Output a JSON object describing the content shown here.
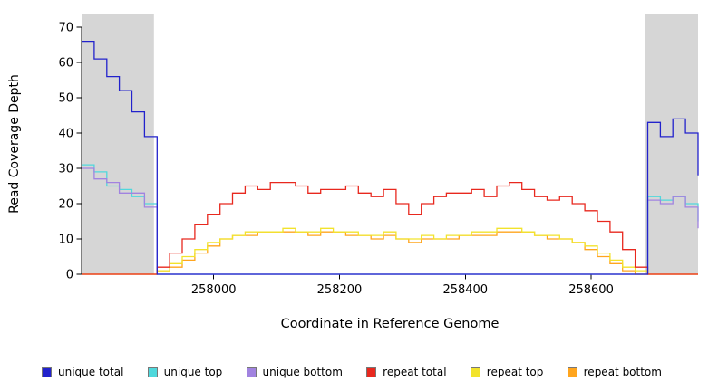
{
  "chart_data": {
    "type": "line",
    "title": "",
    "xlabel": "Coordinate in Reference Genome",
    "ylabel": "Read Coverage Depth",
    "xlim": [
      257790,
      258770
    ],
    "ylim": [
      0,
      70
    ],
    "xticks": [
      258000,
      258200,
      258400,
      258600
    ],
    "yticks": [
      0,
      10,
      20,
      30,
      40,
      50,
      60,
      70
    ],
    "grid": false,
    "legend_position": "bottom",
    "shaded_regions": [
      {
        "x0": 257790,
        "x1": 257905,
        "color": "#d6d6d6"
      },
      {
        "x0": 258685,
        "x1": 258770,
        "color": "#d6d6d6"
      }
    ],
    "x": [
      257790,
      257810,
      257830,
      257850,
      257870,
      257890,
      257910,
      257930,
      257950,
      257970,
      257990,
      258010,
      258030,
      258050,
      258070,
      258090,
      258110,
      258130,
      258150,
      258170,
      258190,
      258210,
      258230,
      258250,
      258270,
      258290,
      258310,
      258330,
      258350,
      258370,
      258390,
      258410,
      258430,
      258450,
      258470,
      258490,
      258510,
      258530,
      258550,
      258570,
      258590,
      258610,
      258630,
      258650,
      258670,
      258690,
      258710,
      258730,
      258750,
      258770
    ],
    "series": [
      {
        "name": "unique total",
        "color": "#2222cc",
        "values": [
          66,
          61,
          56,
          52,
          46,
          39,
          0,
          0,
          0,
          0,
          0,
          0,
          0,
          0,
          0,
          0,
          0,
          0,
          0,
          0,
          0,
          0,
          0,
          0,
          0,
          0,
          0,
          0,
          0,
          0,
          0,
          0,
          0,
          0,
          0,
          0,
          0,
          0,
          0,
          0,
          0,
          0,
          0,
          0,
          0,
          43,
          39,
          44,
          40,
          28
        ]
      },
      {
        "name": "unique top",
        "color": "#4fd8dc",
        "values": [
          31,
          29,
          25,
          24,
          22,
          20,
          0,
          0,
          0,
          0,
          0,
          0,
          0,
          0,
          0,
          0,
          0,
          0,
          0,
          0,
          0,
          0,
          0,
          0,
          0,
          0,
          0,
          0,
          0,
          0,
          0,
          0,
          0,
          0,
          0,
          0,
          0,
          0,
          0,
          0,
          0,
          0,
          0,
          0,
          0,
          22,
          21,
          22,
          20,
          15
        ]
      },
      {
        "name": "unique bottom",
        "color": "#a183e0",
        "values": [
          30,
          27,
          26,
          23,
          23,
          19,
          0,
          0,
          0,
          0,
          0,
          0,
          0,
          0,
          0,
          0,
          0,
          0,
          0,
          0,
          0,
          0,
          0,
          0,
          0,
          0,
          0,
          0,
          0,
          0,
          0,
          0,
          0,
          0,
          0,
          0,
          0,
          0,
          0,
          0,
          0,
          0,
          0,
          0,
          0,
          21,
          20,
          22,
          19,
          13
        ]
      },
      {
        "name": "repeat total",
        "color": "#e8281e",
        "values": [
          0,
          0,
          0,
          0,
          0,
          0,
          2,
          6,
          10,
          14,
          17,
          20,
          23,
          25,
          24,
          26,
          26,
          25,
          23,
          24,
          24,
          25,
          23,
          22,
          24,
          20,
          17,
          20,
          22,
          23,
          23,
          24,
          22,
          25,
          26,
          24,
          22,
          21,
          22,
          20,
          18,
          15,
          12,
          7,
          2,
          0,
          0,
          0,
          0,
          0
        ]
      },
      {
        "name": "repeat top",
        "color": "#f2e32c",
        "values": [
          0,
          0,
          0,
          0,
          0,
          0,
          1,
          3,
          5,
          7,
          9,
          10,
          11,
          12,
          12,
          12,
          13,
          12,
          12,
          13,
          12,
          12,
          11,
          11,
          12,
          10,
          10,
          11,
          10,
          11,
          11,
          12,
          12,
          13,
          13,
          12,
          11,
          11,
          10,
          9,
          8,
          6,
          4,
          2,
          1,
          0,
          0,
          0,
          0,
          0
        ]
      },
      {
        "name": "repeat bottom",
        "color": "#ffa51e",
        "values": [
          0,
          0,
          0,
          0,
          0,
          0,
          1,
          2,
          4,
          6,
          8,
          10,
          11,
          11,
          12,
          12,
          12,
          12,
          11,
          12,
          12,
          11,
          11,
          10,
          11,
          10,
          9,
          10,
          10,
          10,
          11,
          11,
          11,
          12,
          12,
          12,
          11,
          10,
          10,
          9,
          7,
          5,
          3,
          1,
          0,
          0,
          0,
          0,
          0,
          0
        ]
      }
    ]
  }
}
